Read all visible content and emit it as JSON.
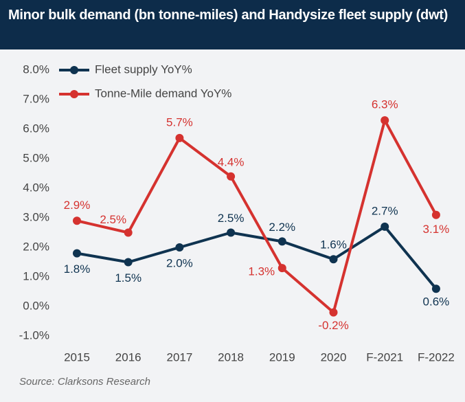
{
  "chart_data": {
    "type": "line",
    "title": "Minor bulk demand (bn tonne-miles) and Handysize fleet supply (dwt)",
    "source": "Source: Clarksons Research",
    "categories": [
      "2015",
      "2016",
      "2017",
      "2018",
      "2019",
      "2020",
      "F-2021",
      "F-2022"
    ],
    "series": [
      {
        "name": "Fleet supply YoY%",
        "color": "#0f3350",
        "values": [
          1.8,
          1.5,
          2.0,
          2.5,
          2.2,
          1.6,
          2.7,
          0.6
        ],
        "value_labels": [
          "1.8%",
          "1.5%",
          "2.0%",
          "2.5%",
          "2.2%",
          "1.6%",
          "2.7%",
          "0.6%"
        ]
      },
      {
        "name": "Tonne-Mile demand YoY%",
        "color": "#d5322f",
        "values": [
          2.9,
          2.5,
          5.7,
          4.4,
          1.3,
          -0.2,
          6.3,
          3.1
        ],
        "value_labels": [
          "2.9%",
          "2.5%",
          "5.7%",
          "4.4%",
          "1.3%",
          "-0.2%",
          "6.3%",
          "3.1%"
        ]
      }
    ],
    "ylim": [
      -1,
      8
    ],
    "yticks": [
      {
        "value": -1,
        "label": "-1.0%"
      },
      {
        "value": 0,
        "label": "0.0%"
      },
      {
        "value": 1,
        "label": "1.0%"
      },
      {
        "value": 2,
        "label": "2.0%"
      },
      {
        "value": 3,
        "label": "3.0%"
      },
      {
        "value": 4,
        "label": "4.0%"
      },
      {
        "value": 5,
        "label": "5.0%"
      },
      {
        "value": 6,
        "label": "6.0%"
      },
      {
        "value": 7,
        "label": "7.0%"
      },
      {
        "value": 8,
        "label": "8.0%"
      }
    ],
    "grid": false,
    "legend": "upper left"
  }
}
